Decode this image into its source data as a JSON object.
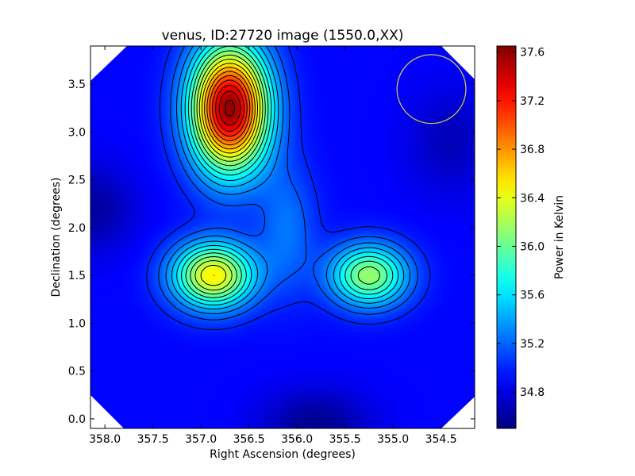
{
  "chart_data": {
    "type": "heatmap",
    "title": "venus, ID:27720 image (1550.0,XX)",
    "xlabel": "Right Ascension (degrees)",
    "ylabel": "Declination (degrees)",
    "colorbar_label": "Power in Kelvin",
    "xlim": [
      358.15,
      354.15
    ],
    "ylim": [
      -0.1,
      3.9
    ],
    "x_ticks": [
      "358.0",
      "357.5",
      "357.0",
      "356.5",
      "356.0",
      "355.5",
      "355.0",
      "354.5"
    ],
    "x_tick_values": [
      358.0,
      357.5,
      357.0,
      356.5,
      356.0,
      355.5,
      355.0,
      354.5
    ],
    "y_ticks": [
      "0.0",
      "0.5",
      "1.0",
      "1.5",
      "2.0",
      "2.5",
      "3.0",
      "3.5"
    ],
    "y_tick_values": [
      0.0,
      0.5,
      1.0,
      1.5,
      2.0,
      2.5,
      3.0,
      3.5
    ],
    "cbar_range": [
      34.5,
      37.65
    ],
    "cbar_ticks": [
      "34.8",
      "35.2",
      "35.6",
      "36.0",
      "36.4",
      "36.8",
      "37.2",
      "37.6"
    ],
    "cbar_tick_values": [
      34.8,
      35.2,
      35.6,
      36.0,
      36.4,
      36.8,
      37.2,
      37.6
    ],
    "colormap": "jet",
    "grid": false,
    "base_level": 34.9,
    "peaks": [
      {
        "ra": 356.7,
        "dec": 3.25,
        "amplitude": 2.7
      },
      {
        "ra": 356.87,
        "dec": 1.5,
        "amplitude": 1.6
      },
      {
        "ra": 355.25,
        "dec": 1.5,
        "amplitude": 1.25
      }
    ],
    "beam_circle": {
      "ra": 354.6,
      "dec": 3.45,
      "radius_deg": 0.36,
      "color": "#c8c840"
    },
    "background_color": "#ffffff"
  }
}
